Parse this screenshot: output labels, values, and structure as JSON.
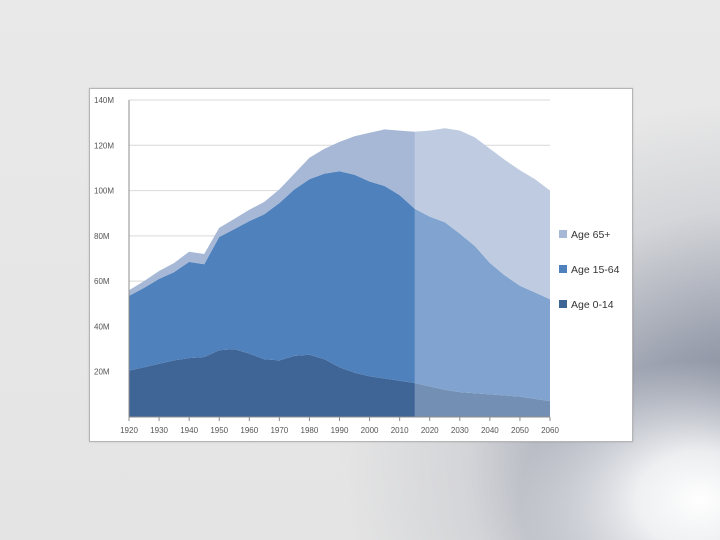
{
  "chart_data": {
    "type": "area",
    "stacked": true,
    "title": "",
    "xlabel": "",
    "ylabel": "",
    "x_ticks": [
      1920,
      1930,
      1940,
      1950,
      1960,
      1970,
      1980,
      1990,
      2000,
      2010,
      2020,
      2030,
      2040,
      2050,
      2060
    ],
    "y_ticks": [
      {
        "value": 20,
        "label": "20M"
      },
      {
        "value": 40,
        "label": "40M"
      },
      {
        "value": 60,
        "label": "60M"
      },
      {
        "value": 80,
        "label": "80M"
      },
      {
        "value": 100,
        "label": "100M"
      },
      {
        "value": 120,
        "label": "120M"
      },
      {
        "value": 140,
        "label": "140M"
      }
    ],
    "xlim": [
      1920,
      2060
    ],
    "ylim": [
      0,
      140
    ],
    "grid": true,
    "legend_position": "right",
    "projection_start_year": 2015,
    "x": [
      1920,
      1925,
      1930,
      1935,
      1940,
      1945,
      1950,
      1955,
      1960,
      1965,
      1970,
      1975,
      1980,
      1985,
      1990,
      1995,
      2000,
      2005,
      2010,
      2015,
      2020,
      2025,
      2030,
      2035,
      2040,
      2045,
      2050,
      2055,
      2060
    ],
    "series": [
      {
        "name": "Age 0-14",
        "color": "#3f6597",
        "values": [
          20.5,
          22,
          23.5,
          25,
          26,
          26.5,
          29.5,
          30,
          28,
          25.5,
          25,
          27,
          27.5,
          25.5,
          22,
          19.5,
          18,
          17,
          16,
          15,
          13.5,
          12,
          11,
          10.5,
          10,
          9.5,
          9,
          8,
          7
        ]
      },
      {
        "name": "Age 15-64",
        "color": "#4f81bd",
        "values": [
          33,
          35,
          37.5,
          39,
          42.5,
          41,
          50,
          53,
          58.5,
          64,
          69.5,
          73.5,
          77.5,
          82,
          86.5,
          87.5,
          86,
          85,
          82,
          77,
          75,
          74,
          70,
          65,
          58,
          53,
          49,
          47,
          45
        ]
      },
      {
        "name": "Age 65+",
        "color": "#a6b8d6",
        "values": [
          2.5,
          3,
          3.5,
          4,
          4.5,
          4.5,
          4,
          4.5,
          5,
          5.5,
          6,
          7,
          9.5,
          11,
          13,
          17,
          21.5,
          25,
          28.5,
          34,
          38,
          41.5,
          45.5,
          48,
          50.5,
          51,
          51,
          50,
          48
        ]
      }
    ]
  }
}
